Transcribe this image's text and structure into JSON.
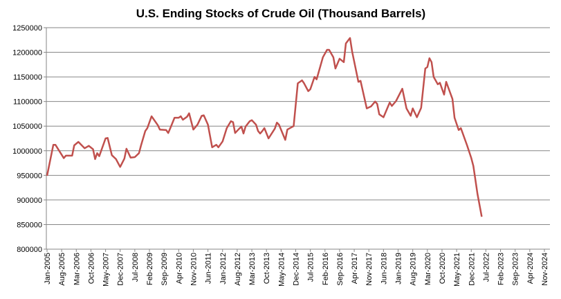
{
  "chart_data": {
    "type": "line",
    "title": "U.S. Ending Stocks of Crude Oil (Thousand Barrels)",
    "xlabel": "",
    "ylabel": "",
    "ylim": [
      800000,
      1250000
    ],
    "yticks": [
      "800000",
      "850000",
      "900000",
      "950000",
      "1000000",
      "1050000",
      "1100000",
      "1150000",
      "1200000",
      "1250000"
    ],
    "xticks": [
      "Jan-2005",
      "Aug-2005",
      "Mar-2006",
      "Oct-2006",
      "May-2007",
      "Dec-2007",
      "Jul-2008",
      "Feb-2009",
      "Sep-2009",
      "Apr-2010",
      "Nov-2010",
      "Jun-2011",
      "Jan-2012",
      "Aug-2012",
      "Mar-2013",
      "Oct-2013",
      "May-2014",
      "Dec-2014",
      "Jul-2015",
      "Feb-2016",
      "Sep-2016",
      "Apr-2017",
      "Nov-2017",
      "Jun-2018",
      "Jan-2019",
      "Aug-2019",
      "Mar-2020",
      "Oct-2020",
      "May-2021",
      "Dec-2021",
      "Jul-2022",
      "Feb-2023",
      "Sep-2023",
      "Apr-2024",
      "Nov-2024"
    ],
    "x_unit": "months since Jan-2005",
    "xlim": [
      0,
      238
    ],
    "grid": true,
    "legend": "none",
    "series": [
      {
        "name": "U.S. Ending Stocks of Crude Oil",
        "color": "#C0504D",
        "points": [
          [
            0,
            949000
          ],
          [
            3,
            1012000
          ],
          [
            4,
            1012000
          ],
          [
            8,
            985000
          ],
          [
            9,
            990000
          ],
          [
            12,
            990000
          ],
          [
            13,
            1011000
          ],
          [
            15,
            1018000
          ],
          [
            18,
            1005000
          ],
          [
            20,
            1010000
          ],
          [
            22,
            1003000
          ],
          [
            23,
            983000
          ],
          [
            24,
            995000
          ],
          [
            25,
            989000
          ],
          [
            28,
            1025000
          ],
          [
            29,
            1026000
          ],
          [
            31,
            991000
          ],
          [
            33,
            983000
          ],
          [
            35,
            967000
          ],
          [
            37,
            984000
          ],
          [
            38,
            1004000
          ],
          [
            40,
            986000
          ],
          [
            42,
            987000
          ],
          [
            44,
            995000
          ],
          [
            45,
            1011000
          ],
          [
            47,
            1040000
          ],
          [
            48,
            1046000
          ],
          [
            50,
            1070000
          ],
          [
            53,
            1052000
          ],
          [
            54,
            1043000
          ],
          [
            57,
            1042000
          ],
          [
            58,
            1036000
          ],
          [
            59,
            1046000
          ],
          [
            61,
            1067000
          ],
          [
            63,
            1067000
          ],
          [
            64,
            1070000
          ],
          [
            65,
            1063000
          ],
          [
            67,
            1069000
          ],
          [
            68,
            1076000
          ],
          [
            70,
            1043000
          ],
          [
            72,
            1053000
          ],
          [
            74,
            1071000
          ],
          [
            75,
            1072000
          ],
          [
            77,
            1053000
          ],
          [
            79,
            1007000
          ],
          [
            81,
            1012000
          ],
          [
            82,
            1007000
          ],
          [
            84,
            1019000
          ],
          [
            86,
            1046000
          ],
          [
            88,
            1060000
          ],
          [
            89,
            1058000
          ],
          [
            90,
            1036000
          ],
          [
            92,
            1045000
          ],
          [
            93,
            1049000
          ],
          [
            94,
            1035000
          ],
          [
            95,
            1049000
          ],
          [
            97,
            1060000
          ],
          [
            98,
            1062000
          ],
          [
            100,
            1053000
          ],
          [
            101,
            1040000
          ],
          [
            102,
            1035000
          ],
          [
            103,
            1040000
          ],
          [
            104,
            1046000
          ],
          [
            106,
            1025000
          ],
          [
            109,
            1045000
          ],
          [
            110,
            1057000
          ],
          [
            111,
            1053000
          ],
          [
            114,
            1022000
          ],
          [
            115,
            1043000
          ],
          [
            118,
            1050000
          ],
          [
            120,
            1137000
          ],
          [
            122,
            1143000
          ],
          [
            123,
            1137000
          ],
          [
            125,
            1121000
          ],
          [
            126,
            1125000
          ],
          [
            128,
            1150000
          ],
          [
            129,
            1145000
          ],
          [
            132,
            1190000
          ],
          [
            134,
            1205000
          ],
          [
            135,
            1205000
          ],
          [
            137,
            1190000
          ],
          [
            138,
            1167000
          ],
          [
            140,
            1187000
          ],
          [
            142,
            1180000
          ],
          [
            143,
            1218000
          ],
          [
            145,
            1229000
          ],
          [
            146,
            1201000
          ],
          [
            149,
            1140000
          ],
          [
            150,
            1142000
          ],
          [
            153,
            1086000
          ],
          [
            155,
            1090000
          ],
          [
            157,
            1100000
          ],
          [
            158,
            1095000
          ],
          [
            159,
            1074000
          ],
          [
            161,
            1068000
          ],
          [
            164,
            1098000
          ],
          [
            165,
            1091000
          ],
          [
            167,
            1101000
          ],
          [
            170,
            1126000
          ],
          [
            172,
            1086000
          ],
          [
            174,
            1071000
          ],
          [
            175,
            1086000
          ],
          [
            177,
            1068000
          ],
          [
            179,
            1087000
          ],
          [
            181,
            1167000
          ],
          [
            182,
            1170000
          ],
          [
            183,
            1188000
          ],
          [
            184,
            1180000
          ],
          [
            185,
            1150000
          ],
          [
            187,
            1135000
          ],
          [
            188,
            1138000
          ],
          [
            190,
            1114000
          ],
          [
            191,
            1140000
          ],
          [
            194,
            1105000
          ],
          [
            195,
            1067000
          ],
          [
            197,
            1042000
          ],
          [
            198,
            1046000
          ],
          [
            201,
            1011000
          ],
          [
            203,
            985000
          ],
          [
            204,
            969000
          ],
          [
            206,
            912000
          ],
          [
            208,
            866000
          ]
        ]
      }
    ]
  }
}
